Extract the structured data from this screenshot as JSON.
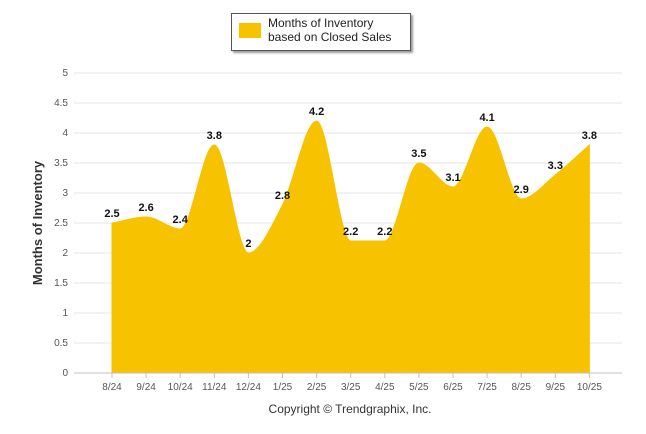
{
  "chart_data": {
    "type": "area",
    "title": "",
    "legend": {
      "label": "Months of Inventory based on Closed Sales",
      "position": "top-center"
    },
    "ylabel": "Months of Inventory",
    "xlabel": "",
    "ylim": [
      0,
      5
    ],
    "yticks": [
      "0",
      "0.5",
      "1",
      "1.5",
      "2",
      "2.5",
      "3",
      "3.5",
      "4",
      "4.5",
      "5"
    ],
    "grid": true,
    "categories": [
      "8/24",
      "9/24",
      "10/24",
      "11/24",
      "12/24",
      "1/25",
      "2/25",
      "3/25",
      "4/25",
      "5/25",
      "6/25",
      "7/25",
      "8/25",
      "9/25",
      "10/25"
    ],
    "series": [
      {
        "name": "Months of Inventory based on Closed Sales",
        "values": [
          2.5,
          2.6,
          2.4,
          3.8,
          2,
          2.8,
          4.2,
          2.2,
          2.2,
          3.5,
          3.1,
          4.1,
          2.9,
          3.3,
          3.8
        ],
        "labels": [
          "2.5",
          "2.6",
          "2.4",
          "3.8",
          "2",
          "2.8",
          "4.2",
          "2.2",
          "2.2",
          "3.5",
          "3.1",
          "4.1",
          "2.9",
          "3.3",
          "3.8"
        ],
        "color": "#f7c200"
      }
    ],
    "footer": "Copyright © Trendgraphix, Inc."
  }
}
